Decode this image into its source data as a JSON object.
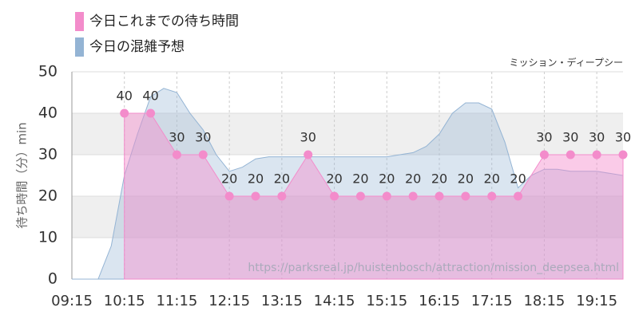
{
  "chart_data": {
    "type": "area",
    "subtitle": "ミッション・ディープシー",
    "y_label": "待ち時間（分）min",
    "annotation": "https://parksreal.jp/huistenbosch/attraction/mission_deepsea.html",
    "xlim": [
      "09:15",
      "19:45"
    ],
    "xticks": [
      "09:15",
      "10:15",
      "11:15",
      "12:15",
      "13:15",
      "14:15",
      "15:15",
      "16:15",
      "17:15",
      "18:15",
      "19:15"
    ],
    "ylim": [
      0,
      50
    ],
    "yticks": [
      0,
      10,
      20,
      30,
      40,
      50
    ],
    "grid": true,
    "series": [
      {
        "name": "今日これまでの待ち時間",
        "color": "#f38ccb",
        "x": [
          "10:15",
          "10:45",
          "11:15",
          "11:45",
          "12:15",
          "12:45",
          "13:15",
          "13:45",
          "14:15",
          "14:45",
          "15:15",
          "15:45",
          "16:15",
          "16:45",
          "17:15",
          "17:45",
          "18:15",
          "18:45",
          "19:15",
          "19:45"
        ],
        "values": [
          40,
          40,
          30,
          30,
          20,
          20,
          20,
          30,
          20,
          20,
          20,
          20,
          20,
          20,
          20,
          20,
          30,
          30,
          30,
          30
        ]
      },
      {
        "name": "今日の混雑予想",
        "color": "#94b4d4",
        "x": [
          "09:15",
          "09:30",
          "09:45",
          "10:00",
          "10:15",
          "10:30",
          "10:45",
          "11:00",
          "11:15",
          "11:30",
          "11:45",
          "12:00",
          "12:15",
          "12:30",
          "12:45",
          "13:00",
          "13:15",
          "13:30",
          "13:45",
          "14:00",
          "14:15",
          "14:30",
          "14:45",
          "15:00",
          "15:15",
          "15:30",
          "15:45",
          "16:00",
          "16:15",
          "16:30",
          "16:45",
          "17:00",
          "17:15",
          "17:30",
          "17:45",
          "18:00",
          "18:15",
          "18:30",
          "18:45",
          "19:00",
          "19:15",
          "19:30",
          "19:45"
        ],
        "values": [
          0,
          0,
          0,
          8,
          25,
          35,
          44,
          46,
          45,
          40,
          36,
          30,
          26,
          27,
          29,
          29.5,
          29.5,
          29.5,
          29.5,
          29.5,
          29.5,
          29.5,
          29.5,
          29.5,
          29.5,
          30,
          30.5,
          32,
          35,
          40,
          42.5,
          42.5,
          41,
          33,
          22,
          25,
          26.5,
          26.5,
          26,
          26,
          26,
          25.5,
          25
        ]
      }
    ]
  }
}
